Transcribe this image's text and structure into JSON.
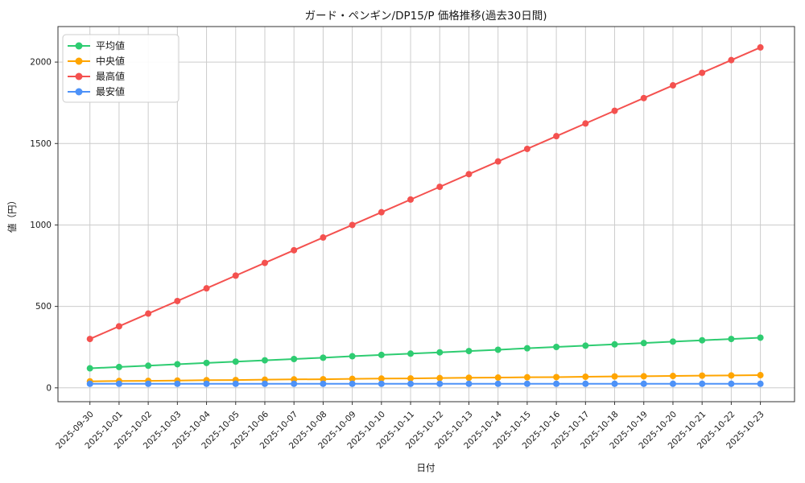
{
  "chart_data": {
    "type": "line",
    "title": "ガード・ペンギン/DP15/P 価格推移(過去30日間)",
    "xlabel": "日付",
    "ylabel": "値（円）",
    "yticks": [
      0,
      500,
      1000,
      1500,
      2000
    ],
    "ylim": [
      -85,
      2218
    ],
    "grid": true,
    "legend_position": "upper-left",
    "categories": [
      "2025-09-30",
      "2025-10-01",
      "2025-10-02",
      "2025-10-03",
      "2025-10-04",
      "2025-10-05",
      "2025-10-06",
      "2025-10-07",
      "2025-10-08",
      "2025-10-09",
      "2025-10-10",
      "2025-10-11",
      "2025-10-12",
      "2025-10-13",
      "2025-10-14",
      "2025-10-15",
      "2025-10-16",
      "2025-10-17",
      "2025-10-18",
      "2025-10-19",
      "2025-10-20",
      "2025-10-21",
      "2025-10-22",
      "2025-10-23"
    ],
    "series": [
      {
        "key": "average",
        "name": "平均値",
        "color": "#2ecc71",
        "values": [
          120,
          128,
          136,
          145,
          153,
          161,
          169,
          177,
          185,
          194,
          202,
          210,
          218,
          226,
          234,
          243,
          251,
          259,
          267,
          275,
          284,
          292,
          300,
          308
        ]
      },
      {
        "key": "median",
        "name": "中央値",
        "color": "#ffa500",
        "values": [
          40,
          42,
          43,
          45,
          47,
          48,
          50,
          52,
          53,
          55,
          57,
          58,
          60,
          62,
          63,
          65,
          66,
          68,
          70,
          71,
          73,
          75,
          76,
          78
        ]
      },
      {
        "key": "highest",
        "name": "最高値",
        "color": "#f4514f",
        "values": [
          300,
          378,
          456,
          533,
          611,
          689,
          767,
          845,
          923,
          1000,
          1078,
          1156,
          1234,
          1312,
          1390,
          1467,
          1545,
          1623,
          1701,
          1779,
          1857,
          1934,
          2012,
          2090
        ]
      },
      {
        "key": "lowest",
        "name": "最安値",
        "color": "#4d92f8",
        "values": [
          25,
          25,
          25,
          25,
          25,
          25,
          25,
          25,
          25,
          25,
          25,
          25,
          25,
          25,
          25,
          25,
          25,
          25,
          25,
          25,
          25,
          25,
          25,
          25
        ]
      }
    ],
    "styles": {
      "grid_color": "#cccccc",
      "spine_color": "#333333",
      "text_color": "#1a1a1a",
      "legend_border": "#cccccc",
      "legend_bg": "#ffffff"
    }
  }
}
